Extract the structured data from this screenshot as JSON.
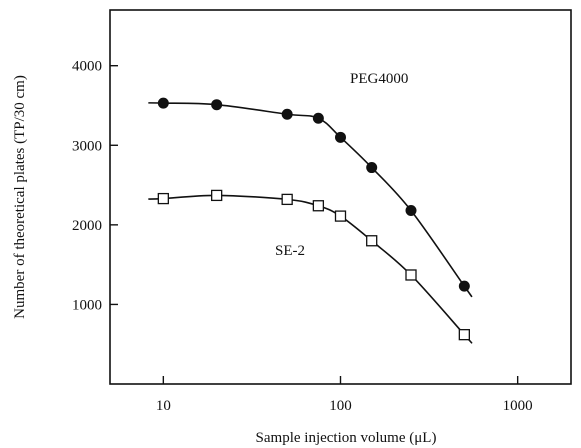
{
  "chart_data": {
    "type": "scatter",
    "title": "",
    "xlabel": "Sample injection volume (μL)",
    "ylabel": "Number of theoretical plates (TP/30 cm)",
    "xscale": "log",
    "xlim": [
      5,
      2000
    ],
    "ylim": [
      0,
      4700
    ],
    "xticks": [
      10,
      100,
      1000
    ],
    "xtick_labels": [
      "10",
      "100",
      "1000"
    ],
    "yticks": [
      1000,
      2000,
      3000,
      4000
    ],
    "ytick_labels": [
      "1000",
      "2000",
      "3000",
      "4000"
    ],
    "grid": false,
    "series": [
      {
        "name": "PEG4000",
        "marker": "filled-circle",
        "color": "#111111",
        "x": [
          10,
          20,
          50,
          75,
          100,
          150,
          250,
          500
        ],
        "y": [
          3530,
          3510,
          3390,
          3340,
          3100,
          2720,
          2180,
          1230
        ]
      },
      {
        "name": "SE-2",
        "marker": "open-square",
        "color": "#111111",
        "x": [
          10,
          20,
          50,
          75,
          100,
          150,
          250,
          500
        ],
        "y": [
          2330,
          2370,
          2320,
          2240,
          2110,
          1800,
          1370,
          620
        ]
      }
    ]
  }
}
